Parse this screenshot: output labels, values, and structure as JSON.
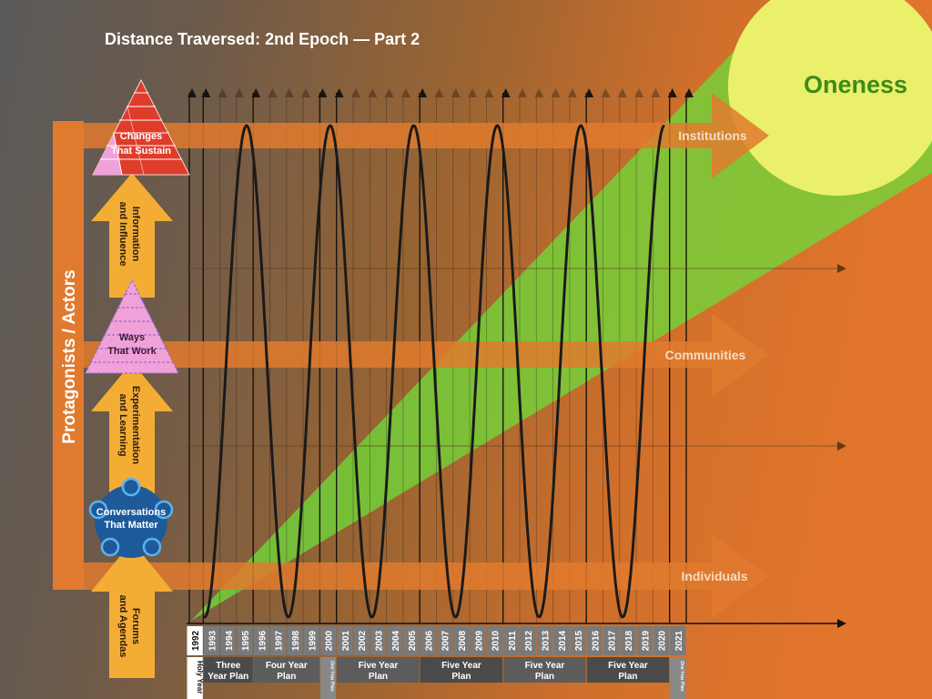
{
  "title": "Distance Traversed: 2nd Epoch — Part 2",
  "goal_label": "Oneness",
  "side_label": "Protagonists / Actors",
  "levels": {
    "institutions": "Institutions",
    "communities": "Communities",
    "individuals": "Individuals"
  },
  "stack": {
    "changes_line1": "Changes",
    "changes_line2": "That Sustain",
    "info_line1": "Information",
    "info_line2": "and Influence",
    "ways_line1": "Ways",
    "ways_line2": "That Work",
    "experimentation_line1": "Experimentation",
    "experimentation_line2": "and Learning",
    "conversations_line1": "Conversations",
    "conversations_line2": "That Matter",
    "forums_line1": "Forums",
    "forums_line2": "and Agendas"
  },
  "years": [
    "1992",
    "1993",
    "1994",
    "1995",
    "1996",
    "1997",
    "1998",
    "1999",
    "2000",
    "2001",
    "2002",
    "2003",
    "2004",
    "2005",
    "2006",
    "2007",
    "2008",
    "2009",
    "2010",
    "2011",
    "2012",
    "2013",
    "2014",
    "2015",
    "2016",
    "2017",
    "2018",
    "2019",
    "2020",
    "2021"
  ],
  "plans": [
    {
      "line1": "Holy Year",
      "line2": ""
    },
    {
      "line1": "Three",
      "line2": "Year Plan"
    },
    {
      "line1": "Four Year",
      "line2": "Plan"
    },
    {
      "line1": "One Year",
      "line2": "Plan"
    },
    {
      "line1": "Five Year",
      "line2": "Plan"
    },
    {
      "line1": "Five Year",
      "line2": "Plan"
    },
    {
      "line1": "Five Year",
      "line2": "Plan"
    },
    {
      "line1": "Five Year",
      "line2": "Plan"
    },
    {
      "line1": "One Year",
      "line2": "Plan"
    }
  ],
  "colors": {
    "orange": "#e07a2e",
    "yellow_arrow": "#f3ad35",
    "red_pyramid": "#e03c2a",
    "pink_pyramid": "#f0a2d8",
    "blue_circle": "#1e5a9a",
    "green_beam": "#6fd93a",
    "sun": "#eaf06a",
    "goal_text": "#3d8a1c"
  }
}
